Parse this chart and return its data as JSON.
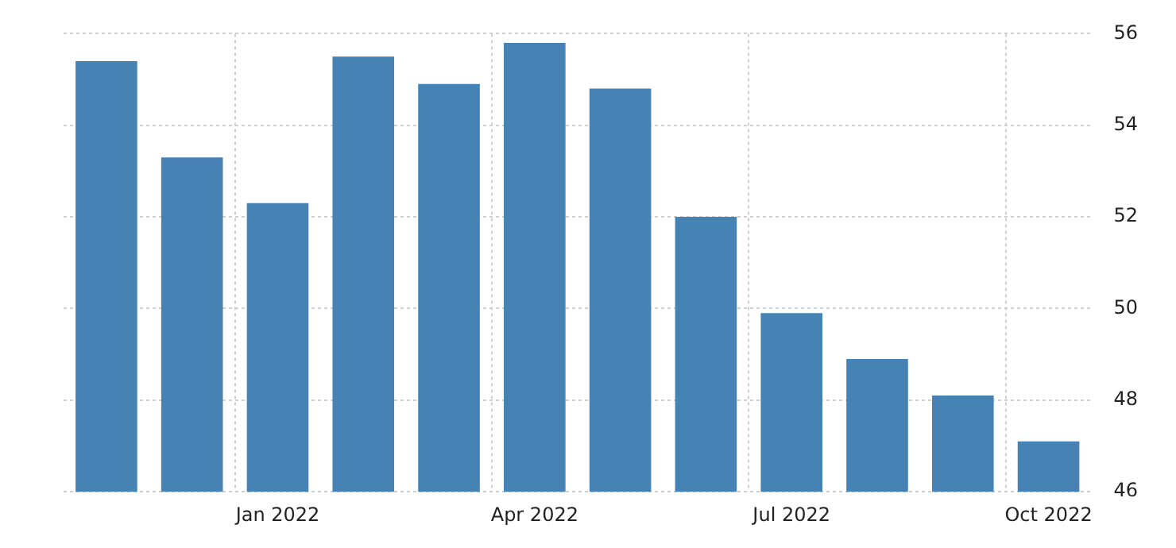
{
  "chart_data": {
    "type": "bar",
    "categories": [
      null,
      null,
      "Jan 2022",
      null,
      null,
      "Apr 2022",
      null,
      null,
      "Jul 2022",
      null,
      null,
      "Oct 2022"
    ],
    "values": [
      55.4,
      53.3,
      52.3,
      55.5,
      54.9,
      55.8,
      54.8,
      52.0,
      49.9,
      48.9,
      48.1,
      47.1
    ],
    "color": "#4682b4",
    "ylim": [
      46,
      56
    ],
    "yticks": [
      46,
      48,
      50,
      52,
      54,
      56
    ],
    "grid": true,
    "legend": false
  }
}
